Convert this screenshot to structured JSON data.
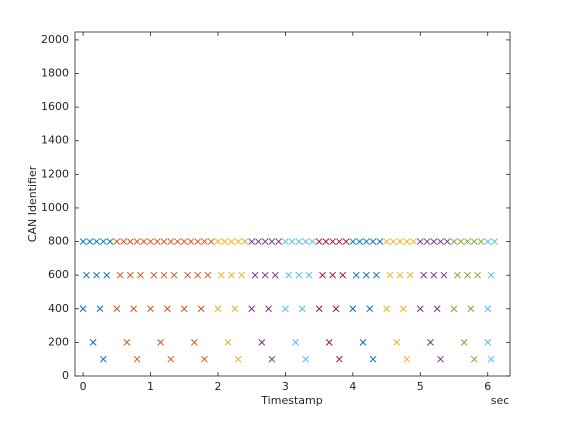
{
  "chart_data": {
    "type": "scatter",
    "x_label": "Timestamp",
    "y_label": "CAN Identifier",
    "x_unit": "sec",
    "xlim": [
      -0.12,
      6.33
    ],
    "ylim": [
      0,
      2047
    ],
    "xticks": [
      0,
      1,
      2,
      3,
      4,
      5,
      6
    ],
    "yticks": [
      0,
      200,
      400,
      600,
      800,
      1000,
      1200,
      1400,
      1600,
      1800,
      2000
    ],
    "grid": false,
    "marker": "x",
    "series": [
      {
        "color": "#0072bd",
        "x": [
          0,
          0.1,
          0.2,
          0.3,
          0.4,
          0.05,
          0.2,
          0.35,
          0,
          0.25,
          0.15,
          0.3
        ],
        "values": [
          800,
          800,
          800,
          800,
          800,
          600,
          600,
          600,
          400,
          400,
          200,
          100
        ]
      },
      {
        "color": "#d95319",
        "x": [
          0.5,
          0.6,
          0.7,
          0.8,
          0.9,
          0.55,
          0.7,
          0.85,
          0.5,
          0.75,
          0.65,
          0.8
        ],
        "values": [
          800,
          800,
          800,
          800,
          800,
          600,
          600,
          600,
          400,
          400,
          200,
          100
        ]
      },
      {
        "color": "#d95319",
        "x": [
          1,
          1.1,
          1.2,
          1.3,
          1.4,
          1.05,
          1.2,
          1.35,
          1,
          1.25,
          1.15,
          1.3
        ],
        "values": [
          800,
          800,
          800,
          800,
          800,
          600,
          600,
          600,
          400,
          400,
          200,
          100
        ]
      },
      {
        "color": "#d95319",
        "x": [
          1.5,
          1.6,
          1.7,
          1.8,
          1.9,
          1.55,
          1.7,
          1.85,
          1.5,
          1.75,
          1.65,
          1.8
        ],
        "values": [
          800,
          800,
          800,
          800,
          800,
          600,
          600,
          600,
          400,
          400,
          200,
          100
        ]
      },
      {
        "color": "#edb120",
        "x": [
          2,
          2.1,
          2.2,
          2.3,
          2.4,
          2.05,
          2.2,
          2.35,
          2,
          2.25,
          2.15,
          2.3
        ],
        "values": [
          800,
          800,
          800,
          800,
          800,
          600,
          600,
          600,
          400,
          400,
          200,
          100
        ]
      },
      {
        "color": "#7e2f8e",
        "x": [
          2.5,
          2.6,
          2.7,
          2.8,
          2.9,
          2.55,
          2.7,
          2.85,
          2.5,
          2.75,
          2.65,
          2.8
        ],
        "values": [
          800,
          800,
          800,
          800,
          800,
          600,
          600,
          600,
          400,
          400,
          200,
          100
        ]
      },
      {
        "color": "#4dbeee",
        "x": [
          3,
          3.1,
          3.2,
          3.3,
          3.4,
          3.05,
          3.2,
          3.35,
          3,
          3.25,
          3.15,
          3.3
        ],
        "values": [
          800,
          800,
          800,
          800,
          800,
          600,
          600,
          600,
          400,
          400,
          200,
          100
        ]
      },
      {
        "color": "#a2142f",
        "x": [
          3.5,
          3.6,
          3.7,
          3.8,
          3.9,
          3.55,
          3.7,
          3.85,
          3.5,
          3.75,
          3.65,
          3.8
        ],
        "values": [
          800,
          800,
          800,
          800,
          800,
          600,
          600,
          600,
          400,
          400,
          200,
          100
        ]
      },
      {
        "color": "#0072bd",
        "x": [
          4,
          4.1,
          4.2,
          4.3,
          4.4,
          4.05,
          4.2,
          4.35,
          4,
          4.25,
          4.15,
          4.3
        ],
        "values": [
          800,
          800,
          800,
          800,
          800,
          600,
          600,
          600,
          400,
          400,
          200,
          100
        ]
      },
      {
        "color": "#edb120",
        "x": [
          4.5,
          4.6,
          4.7,
          4.8,
          4.9,
          4.55,
          4.7,
          4.85,
          4.5,
          4.75,
          4.65,
          4.8
        ],
        "values": [
          800,
          800,
          800,
          800,
          800,
          600,
          600,
          600,
          400,
          400,
          200,
          100
        ]
      },
      {
        "color": "#7e2f8e",
        "x": [
          5,
          5.1,
          5.2,
          5.3,
          5.4,
          5.05,
          5.2,
          5.35,
          5,
          5.25,
          5.15,
          5.3
        ],
        "values": [
          800,
          800,
          800,
          800,
          800,
          600,
          600,
          600,
          400,
          400,
          200,
          100
        ]
      },
      {
        "color": "#77ac30",
        "x": [
          5.5,
          5.6,
          5.7,
          5.8,
          5.9,
          5.55,
          5.7,
          5.85,
          5.5,
          5.75,
          5.65,
          5.8
        ],
        "values": [
          800,
          800,
          800,
          800,
          800,
          600,
          600,
          600,
          400,
          400,
          200,
          100
        ]
      },
      {
        "color": "#4dbeee",
        "x": [
          6,
          6.1,
          6.05,
          6,
          6,
          6.05
        ],
        "values": [
          800,
          800,
          600,
          400,
          200,
          100
        ]
      }
    ]
  }
}
